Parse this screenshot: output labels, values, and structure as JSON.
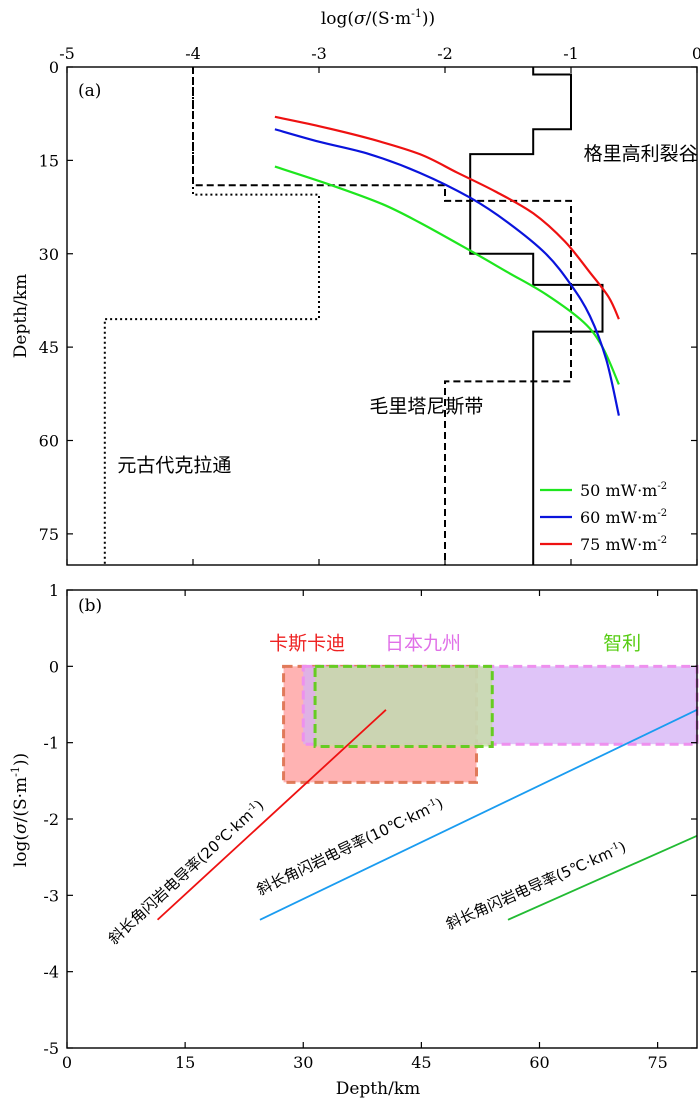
{
  "chart_data": [
    {
      "id": "a",
      "type": "line",
      "panel_label": "(a)",
      "top_axis_title": "log(σ/(S·m⁻¹))",
      "x_title_parts": {
        "pre": "log(",
        "sigma": "σ",
        "mid": "/(S·m",
        "sup": "-1",
        "post": "))"
      },
      "ylabel": "Depth/km",
      "xlim": [
        -5,
        0
      ],
      "ylim": [
        0,
        80
      ],
      "y_inverted": true,
      "xticks": [
        -5,
        -4,
        -3,
        -2,
        -1,
        0
      ],
      "yticks": [
        0,
        15,
        30,
        45,
        60,
        75
      ],
      "tick_labels_x": [
        "-5",
        "-4",
        "-3",
        "-2",
        "-1",
        "0"
      ],
      "tick_labels_y": [
        "0",
        "15",
        "30",
        "45",
        "60",
        "75"
      ],
      "profiles": [
        {
          "name": "格里高利裂谷",
          "style": "solid",
          "color": "#000000",
          "steps": [
            [
              -1.3,
              0
            ],
            [
              -1.3,
              1.2
            ],
            [
              -1.0,
              1.2
            ],
            [
              -1.0,
              10
            ],
            [
              -1.3,
              10
            ],
            [
              -1.3,
              14
            ],
            [
              -1.8,
              14
            ],
            [
              -1.8,
              30
            ],
            [
              -1.3,
              30
            ],
            [
              -1.3,
              35
            ],
            [
              -0.75,
              35
            ],
            [
              -0.75,
              42.5
            ],
            [
              -1.3,
              42.5
            ],
            [
              -1.3,
              80
            ]
          ]
        },
        {
          "name": "毛里塔尼斯带",
          "style": "dashed",
          "color": "#000000",
          "steps": [
            [
              -4.0,
              0
            ],
            [
              -4.0,
              19
            ],
            [
              -2.0,
              19
            ],
            [
              -2.0,
              21.5
            ],
            [
              -1.0,
              21.5
            ],
            [
              -1.0,
              50.5
            ],
            [
              -2.0,
              50.5
            ],
            [
              -2.0,
              80
            ]
          ]
        },
        {
          "name": "元古代克拉通",
          "style": "dotted",
          "color": "#000000",
          "steps": [
            [
              -4.0,
              0
            ],
            [
              -4.0,
              20.5
            ],
            [
              -3.0,
              20.5
            ],
            [
              -3.0,
              40.5
            ],
            [
              -4.7,
              40.5
            ],
            [
              -4.7,
              80
            ]
          ]
        }
      ],
      "profile_labels": [
        {
          "text": "格里高利裂谷",
          "x": -0.9,
          "y": 14
        },
        {
          "text": "毛里塔尼斯带",
          "x": -2.6,
          "y": 54.5
        },
        {
          "text": "元古代克拉通",
          "x": -4.6,
          "y": 64
        }
      ],
      "series": [
        {
          "name": "50 mW·m⁻²",
          "legend_value": "50 mW·m",
          "legend_sup": "-2",
          "color": "#1ee61e",
          "x": [
            -3.35,
            -2.9,
            -2.5,
            -2.2,
            -1.8,
            -1.5,
            -1.2,
            -0.9,
            -0.75,
            -0.62
          ],
          "y": [
            16,
            19,
            22,
            25,
            29.5,
            33,
            36.5,
            41,
            45,
            51
          ]
        },
        {
          "name": "60 mW·m⁻²",
          "legend_value": "60 mW·m",
          "legend_sup": "-2",
          "color": "#0a14dc",
          "x": [
            -3.35,
            -3.0,
            -2.6,
            -2.2,
            -1.8,
            -1.5,
            -1.2,
            -1.0,
            -0.85,
            -0.72,
            -0.62
          ],
          "y": [
            10,
            12,
            14,
            17,
            21,
            25,
            30,
            35,
            40,
            47,
            56
          ]
        },
        {
          "name": "75 mW·m⁻²",
          "legend_value": "75 mW·m",
          "legend_sup": "-2",
          "color": "#ee1111",
          "x": [
            -3.35,
            -3.0,
            -2.6,
            -2.2,
            -1.9,
            -1.6,
            -1.3,
            -1.05,
            -0.85,
            -0.7,
            -0.62
          ],
          "y": [
            8,
            9.5,
            11.5,
            14,
            17,
            20,
            23.5,
            28,
            33,
            37,
            40.5
          ]
        }
      ]
    },
    {
      "id": "b",
      "type": "area",
      "panel_label": "(b)",
      "xlabel": "Depth/km",
      "ylabel": "log(σ/(S·m⁻¹))",
      "y_title_parts": {
        "pre": "log(",
        "sigma": "σ",
        "mid": "/(S·m",
        "sup": "-1",
        "post": "))"
      },
      "xlim": [
        0,
        80
      ],
      "ylim": [
        -5,
        1
      ],
      "xticks": [
        0,
        15,
        30,
        45,
        60,
        75
      ],
      "yticks": [
        1,
        0,
        -1,
        -2,
        -3,
        -4,
        -5
      ],
      "tick_labels_x": [
        "0",
        "15",
        "30",
        "45",
        "60",
        "75"
      ],
      "tick_labels_y": [
        "1",
        "0",
        "-1",
        "-2",
        "-3",
        "-4",
        "-5"
      ],
      "regions": [
        {
          "name": "卡斯卡迪",
          "x": [
            27.5,
            52
          ],
          "y": [
            -1.52,
            0
          ],
          "fill": "#ff9999",
          "stroke": "#e07a5a",
          "label_color": "#ee2222"
        },
        {
          "name": "智利",
          "x": [
            30,
            80
          ],
          "y": [
            -1.02,
            0
          ],
          "fill": "#d4b0f5",
          "stroke": "#ee90ee",
          "label_color": "#e070e8"
        },
        {
          "name": "日本九州",
          "x": [
            31.5,
            54
          ],
          "y": [
            -1.05,
            0
          ],
          "fill": "#c4e0a0",
          "stroke": "#66cc22",
          "label_color": "#55cc11"
        }
      ],
      "region_labels": [
        {
          "text": "卡斯卡迪",
          "x": 30.5,
          "y": 0.22
        },
        {
          "text": "日本九州",
          "x": 45.2,
          "y": 0.22
        },
        {
          "text": "智利",
          "x": 70.5,
          "y": 0.22
        }
      ],
      "lines": [
        {
          "name": "斜长角闪岩电导率(20℃·km⁻¹)",
          "label_main": "斜长角闪岩电导率(20℃·km",
          "label_sup": "-1",
          "label_post": ")",
          "color": "#ee1111",
          "x": [
            11.5,
            40.5
          ],
          "y": [
            -3.32,
            -0.57
          ],
          "label_at": [
            6.0,
            -3.65
          ]
        },
        {
          "name": "斜长角闪岩电导率(10℃·km⁻¹)",
          "label_main": "斜长角闪岩电导率(10℃·km",
          "label_sup": "-1",
          "label_post": ")",
          "color": "#1a9cf0",
          "x": [
            24.5,
            80
          ],
          "y": [
            -3.32,
            -0.57
          ],
          "label_at": [
            24.5,
            -3.0
          ]
        },
        {
          "name": "斜长角闪岩电导率(5℃·km⁻¹)",
          "label_main": "斜长角闪岩电导率(5℃·km",
          "label_sup": "-1",
          "label_post": ")",
          "color": "#22bb33",
          "x": [
            56,
            80
          ],
          "y": [
            -3.32,
            -2.22
          ],
          "label_at": [
            48.5,
            -3.45
          ]
        }
      ]
    }
  ]
}
